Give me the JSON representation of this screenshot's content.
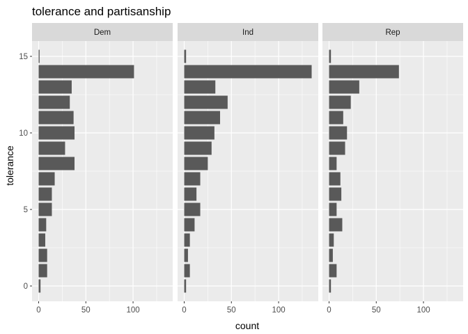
{
  "chart_data": {
    "type": "bar",
    "orientation": "horizontal",
    "title": "tolerance and partisanship",
    "xlabel": "count",
    "ylabel": "tolerance",
    "xlim": [
      -7,
      142
    ],
    "ylim": [
      -1,
      16
    ],
    "x_ticks": [
      0,
      50,
      100
    ],
    "y_ticks": [
      0,
      5,
      10,
      15
    ],
    "grid": true,
    "categories": [
      0,
      1,
      2,
      3,
      4,
      5,
      6,
      7,
      8,
      9,
      10,
      11,
      12,
      13,
      14,
      15
    ],
    "panels": [
      {
        "name": "Dem",
        "values": [
          2,
          9,
          9,
          7,
          8,
          14,
          14,
          17,
          38,
          28,
          38,
          37,
          33,
          35,
          101,
          1
        ]
      },
      {
        "name": "Ind",
        "values": [
          2,
          6,
          4,
          6,
          11,
          17,
          13,
          17,
          25,
          29,
          32,
          38,
          46,
          33,
          135,
          2
        ]
      },
      {
        "name": "Rep",
        "values": [
          2,
          8,
          4,
          5,
          14,
          8,
          13,
          12,
          8,
          17,
          19,
          15,
          23,
          32,
          74,
          2
        ]
      }
    ],
    "colors": {
      "bar": "#595959",
      "panel_background": "#ebebeb",
      "strip_background": "#d9d9d9",
      "grid": "#ffffff",
      "tick": "#333333"
    }
  }
}
